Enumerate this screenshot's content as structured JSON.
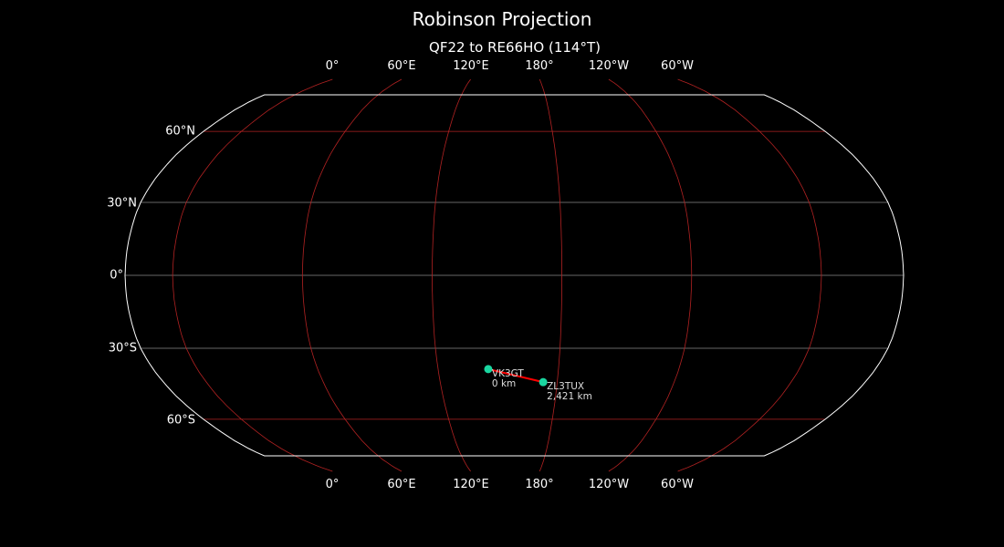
{
  "title": "Robinson Projection",
  "subtitle": "QF22 to RE66HO (114°T)",
  "map": {
    "projection": "robinson",
    "central_longitude": 158,
    "lon_ticks": [
      "0°",
      "60°E",
      "120°E",
      "180°",
      "120°W",
      "60°W"
    ],
    "lat_ticks": [
      "60°N",
      "30°N",
      "0°",
      "30°S",
      "60°S"
    ],
    "colors": {
      "background": "#000000",
      "outline": "#ffffff",
      "meridians": "#b22222",
      "parallels": "#888888",
      "parallels_60": "#b22222",
      "coast": "#888888",
      "path": "#ff0000",
      "marker": "#1ad6a0"
    }
  },
  "stations": [
    {
      "call": "VK3GT",
      "distance": "0 km",
      "lat": -38.6,
      "lon": 145
    },
    {
      "call": "ZL3TUX",
      "distance": "2,421 km",
      "lat": -44,
      "lon": 172.8
    }
  ]
}
